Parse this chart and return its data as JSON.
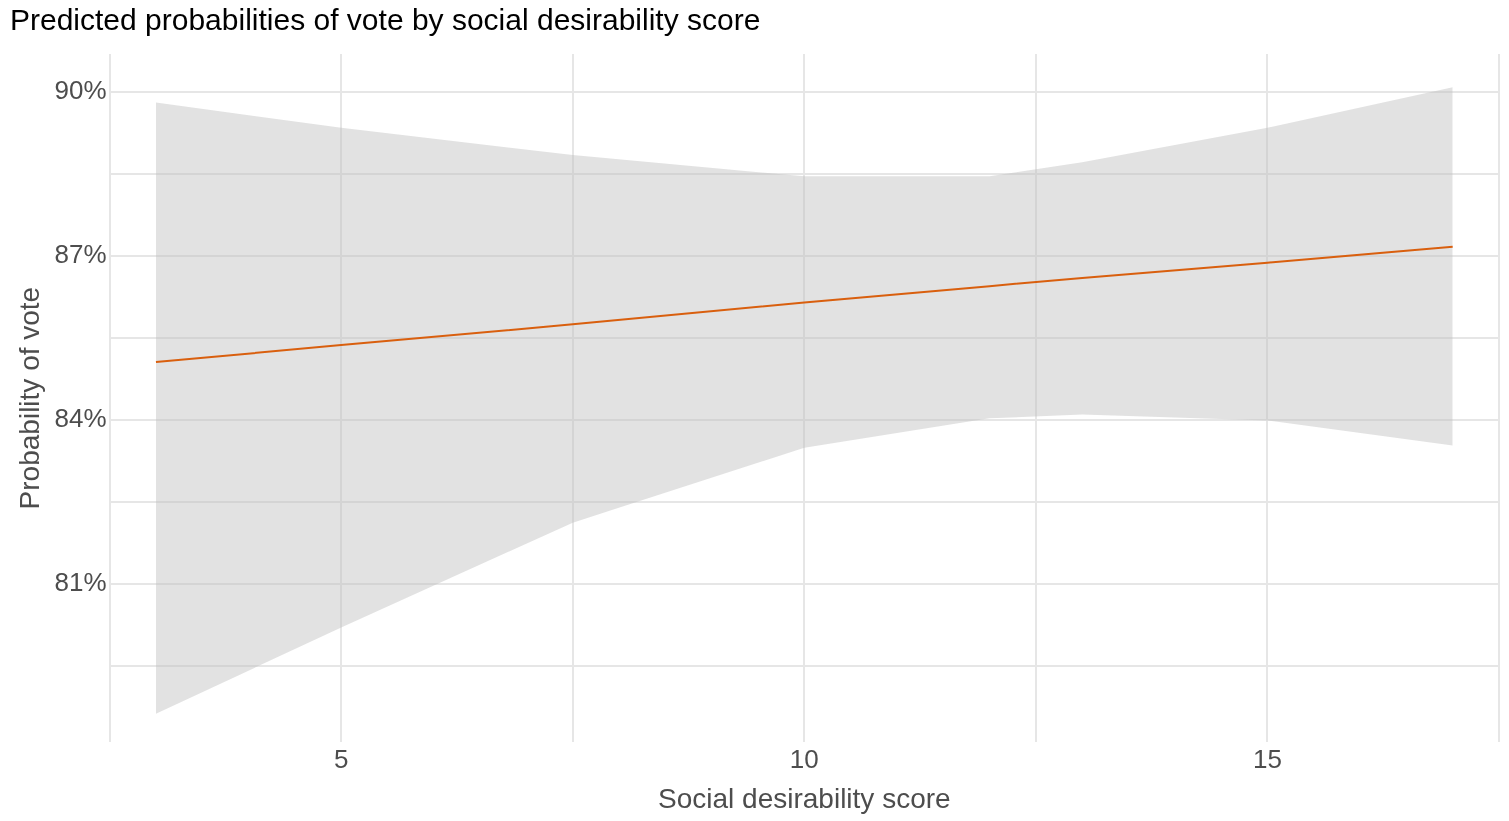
{
  "chart_data": {
    "type": "line",
    "title": "Predicted probabilities of vote by social desirability score",
    "xlabel": "Social desirability score",
    "ylabel": "Probability of vote",
    "x": [
      3,
      5,
      7.5,
      10,
      12,
      13,
      15,
      17
    ],
    "series": [
      {
        "color": "#d95f0e",
        "values": [
          85.06,
          85.37,
          85.75,
          86.15,
          86.45,
          86.6,
          86.88,
          87.17
        ],
        "lower": [
          78.62,
          80.2,
          82.12,
          83.49,
          84.03,
          84.1,
          83.99,
          83.53
        ],
        "upper": [
          89.81,
          89.35,
          88.85,
          88.46,
          88.46,
          88.72,
          89.35,
          90.09
        ]
      }
    ],
    "xlim": [
      2.5,
      17.5
    ],
    "xticks": [
      {
        "value": 2.5,
        "label": null
      },
      5,
      {
        "value": 7.5,
        "label": null
      },
      10,
      {
        "value": 12.5,
        "label": null
      },
      15,
      {
        "value": 17.5,
        "label": null
      }
    ],
    "ylim": [
      78.1,
      90.7
    ],
    "yticks": [
      {
        "value": 79.5,
        "label": null
      },
      {
        "value": 81,
        "label": "81%"
      },
      {
        "value": 82.5,
        "label": null
      },
      {
        "value": 84,
        "label": "84%"
      },
      {
        "value": 85.5,
        "label": null
      },
      {
        "value": 87,
        "label": "87%"
      },
      {
        "value": 88.5,
        "label": null
      },
      {
        "value": 90,
        "label": "90%"
      }
    ],
    "grid": true,
    "legend": false,
    "marker": "none",
    "line_style": "solid"
  }
}
